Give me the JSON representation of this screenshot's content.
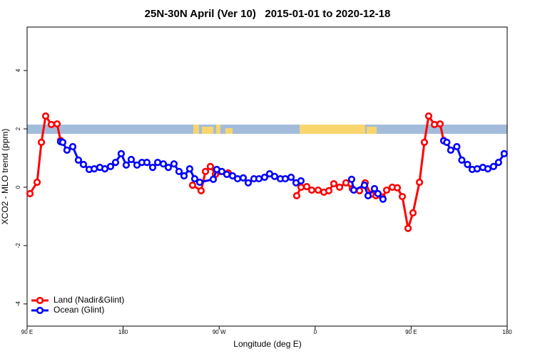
{
  "chart_data": {
    "type": "line",
    "title": "25N-30N April (Ver 10)   2015-01-01 to 2020-12-18",
    "x_label": "Longitude (deg E)",
    "y_label": "XCO2 - MLO trend (ppm)",
    "xlim": [
      90,
      540
    ],
    "ylim": [
      -4.76,
      5.49
    ],
    "xticks": [
      {
        "value": 90,
        "label": "90 E"
      },
      180,
      {
        "value": 270,
        "label": "90 W"
      },
      {
        "value": 360,
        "label": "0"
      },
      {
        "value": 450,
        "label": "90 E"
      },
      {
        "value": 540,
        "label": "180"
      }
    ],
    "yticks": [
      -4,
      -2,
      0,
      2,
      4
    ],
    "legend": "bottom-left",
    "series": [
      {
        "name": "Land (Nadir&Glint)",
        "color": "#ff0000",
        "x": [
          92.7,
          99.4,
          103.4,
          107.4,
          112.7,
          118.1,
          121.4,
          null,
          245.1,
          253.1,
          257.2,
          261.8,
          266.5,
          278.5,
          null,
          342.7,
          346.8,
          352.1,
          356.8,
          362.8,
          368.2,
          372.8,
          377.5,
          382.9,
          388.9,
          394.9,
          401.6,
          406.9,
          412.3,
          417.0,
          423.0,
          427.0,
          432.3,
          437.0,
          441.7,
          447.1,
          451.7,
          457.8,
          462.4,
          466.4,
          471.8,
          477.1,
          480.5
        ],
        "values": [
          -0.22,
          0.17,
          1.54,
          2.44,
          2.15,
          2.17,
          1.6,
          null,
          0.07,
          -0.12,
          0.54,
          0.71,
          0.44,
          0.49,
          null,
          -0.29,
          0.0,
          0.02,
          -0.1,
          -0.1,
          -0.17,
          -0.12,
          0.12,
          0.0,
          0.15,
          -0.05,
          -0.12,
          0.15,
          -0.24,
          -0.29,
          -0.34,
          -0.1,
          0.0,
          -0.02,
          -0.32,
          -1.41,
          -0.88,
          0.17,
          1.54,
          2.44,
          2.15,
          2.17,
          1.6
        ]
      },
      {
        "name": "Ocean (Glint)",
        "color": "#0000ff",
        "x": [
          121.4,
          123.4,
          127.4,
          132.8,
          138.1,
          142.8,
          148.2,
          152.9,
          158.2,
          162.9,
          168.2,
          172.9,
          178.2,
          182.9,
          187.6,
          193.0,
          197.6,
          202.3,
          207.7,
          212.4,
          217.7,
          222.4,
          227.7,
          232.4,
          237.1,
          242.4,
          247.1,
          251.8,
          264.5,
          267.8,
          272.5,
          277.2,
          282.6,
          287.3,
          292.6,
          297.3,
          302.6,
          307.3,
          312.6,
          317.3,
          322.0,
          327.4,
          332.0,
          337.4,
          342.1,
          346.7,
          null,
          394.2,
          396.2,
          406.2,
          409.6,
          415.6,
          418.9,
          423.6,
          null,
          480.5,
          483.4,
          487.1,
          492.8,
          497.5,
          502.8,
          507.2,
          511.9,
          517.2,
          521.9,
          527.2,
          531.9,
          537.2
        ],
        "values": [
          1.56,
          1.54,
          1.27,
          1.39,
          0.93,
          0.78,
          0.61,
          0.63,
          0.68,
          0.63,
          0.71,
          0.85,
          1.15,
          0.76,
          0.95,
          0.76,
          0.85,
          0.85,
          0.68,
          0.85,
          0.8,
          0.68,
          0.8,
          0.54,
          0.39,
          0.63,
          0.29,
          0.17,
          0.27,
          0.61,
          0.54,
          0.44,
          0.39,
          0.29,
          0.32,
          0.15,
          0.29,
          0.29,
          0.34,
          0.46,
          0.37,
          0.29,
          0.29,
          0.34,
          0.15,
          0.22,
          null,
          0.27,
          -0.1,
          0.07,
          -0.29,
          -0.05,
          -0.22,
          -0.41,
          null,
          1.59,
          1.54,
          1.27,
          1.39,
          0.93,
          0.78,
          0.61,
          0.63,
          0.68,
          0.63,
          0.71,
          0.85,
          1.15
        ]
      }
    ]
  }
}
